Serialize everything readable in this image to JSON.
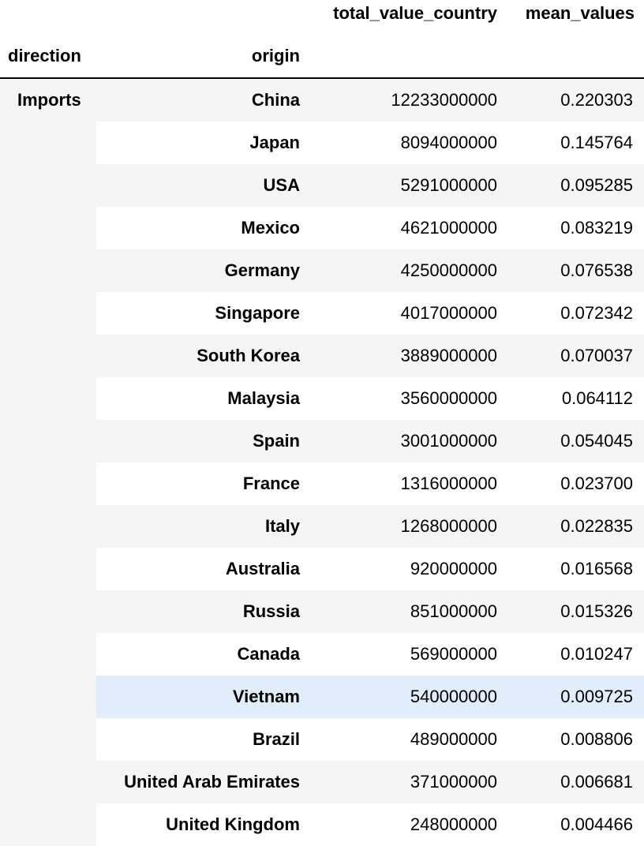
{
  "columns": {
    "total": "total_value_country",
    "mean": "mean_values"
  },
  "index_names": {
    "direction": "direction",
    "origin": "origin"
  },
  "group_label": "Imports",
  "highlight_color": "#e1edfb",
  "stripe_color": "#f5f5f5",
  "rows": [
    {
      "origin": "China",
      "total": "12233000000",
      "mean": "0.220303"
    },
    {
      "origin": "Japan",
      "total": "8094000000",
      "mean": "0.145764"
    },
    {
      "origin": "USA",
      "total": "5291000000",
      "mean": "0.095285"
    },
    {
      "origin": "Mexico",
      "total": "4621000000",
      "mean": "0.083219"
    },
    {
      "origin": "Germany",
      "total": "4250000000",
      "mean": "0.076538"
    },
    {
      "origin": "Singapore",
      "total": "4017000000",
      "mean": "0.072342"
    },
    {
      "origin": "South Korea",
      "total": "3889000000",
      "mean": "0.070037"
    },
    {
      "origin": "Malaysia",
      "total": "3560000000",
      "mean": "0.064112"
    },
    {
      "origin": "Spain",
      "total": "3001000000",
      "mean": "0.054045"
    },
    {
      "origin": "France",
      "total": "1316000000",
      "mean": "0.023700"
    },
    {
      "origin": "Italy",
      "total": "1268000000",
      "mean": "0.022835"
    },
    {
      "origin": "Australia",
      "total": "920000000",
      "mean": "0.016568"
    },
    {
      "origin": "Russia",
      "total": "851000000",
      "mean": "0.015326"
    },
    {
      "origin": "Canada",
      "total": "569000000",
      "mean": "0.010247"
    },
    {
      "origin": "Vietnam",
      "total": "540000000",
      "mean": "0.009725",
      "highlighted": true
    },
    {
      "origin": "Brazil",
      "total": "489000000",
      "mean": "0.008806"
    },
    {
      "origin": "United Arab Emirates",
      "total": "371000000",
      "mean": "0.006681"
    },
    {
      "origin": "United Kingdom",
      "total": "248000000",
      "mean": "0.004466"
    }
  ]
}
